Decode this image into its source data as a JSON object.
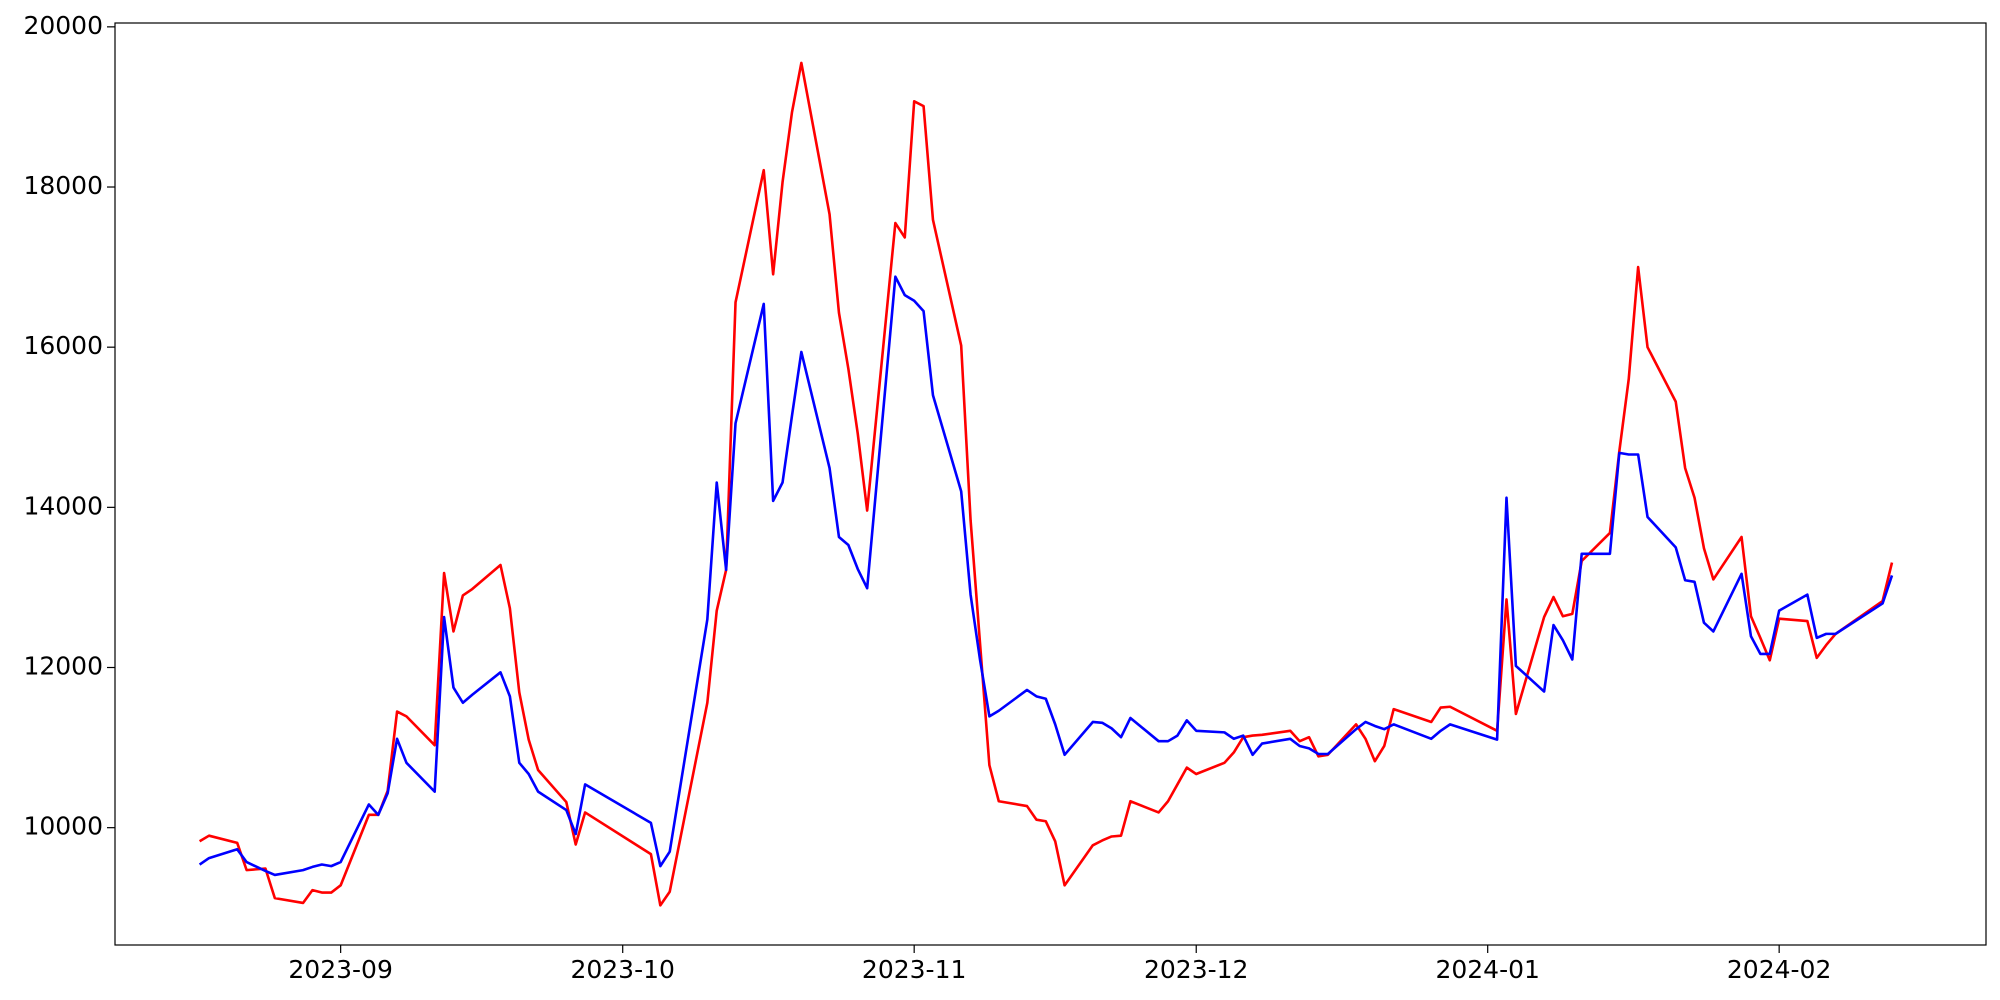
{
  "chart_data": {
    "type": "line",
    "x": [
      19586,
      19587,
      19590,
      19591,
      19593,
      19594,
      19597,
      19598,
      19599,
      19600,
      19601,
      19604,
      19605,
      19606,
      19607,
      19608,
      19611,
      19612,
      19613,
      19614,
      19615,
      19618,
      19619,
      19620,
      19621,
      19622,
      19625,
      19626,
      19627,
      19634,
      19635,
      19636,
      19640,
      19641,
      19642,
      19643,
      19646,
      19647,
      19648,
      19649,
      19650,
      19653,
      19654,
      19655,
      19656,
      19657,
      19660,
      19661,
      19662,
      19663,
      19664,
      19667,
      19668,
      19669,
      19670,
      19671,
      19674,
      19675,
      19676,
      19677,
      19678,
      19681,
      19682,
      19683,
      19684,
      19685,
      19688,
      19689,
      19690,
      19691,
      19692,
      19695,
      19696,
      19697,
      19698,
      19699,
      19702,
      19703,
      19704,
      19705,
      19706,
      19709,
      19710,
      19711,
      19712,
      19713,
      19717,
      19718,
      19719,
      19724,
      19725,
      19726,
      19729,
      19730,
      19731,
      19732,
      19733,
      19736,
      19737,
      19738,
      19739,
      19740,
      19743,
      19744,
      19745,
      19746,
      19747,
      19750,
      19751,
      19752,
      19753,
      19754,
      19757,
      19758,
      19759,
      19760,
      19765,
      19766
    ],
    "series": [
      {
        "color": "red",
        "values": [
          9830,
          9900,
          9810,
          9470,
          9490,
          9120,
          9060,
          9220,
          9190,
          9190,
          9280,
          10160,
          10160,
          10460,
          11450,
          11390,
          11030,
          13180,
          12450,
          12900,
          12980,
          13280,
          12740,
          11690,
          11100,
          10720,
          10320,
          9790,
          10190,
          9670,
          9030,
          9200,
          11560,
          12710,
          13220,
          16560,
          18210,
          16910,
          18060,
          18930,
          19550,
          17660,
          16430,
          15730,
          14920,
          13960,
          17550,
          17370,
          19070,
          19010,
          17590,
          16020,
          13840,
          12310,
          10780,
          10330,
          10270,
          10100,
          10080,
          9830,
          9280,
          9780,
          9840,
          9890,
          9900,
          10330,
          10190,
          10330,
          10540,
          10750,
          10670,
          10810,
          10940,
          11130,
          11150,
          11160,
          11210,
          11080,
          11130,
          10890,
          10910,
          11290,
          11110,
          10830,
          11020,
          11480,
          11320,
          11500,
          11510,
          11210,
          12850,
          11420,
          12630,
          12880,
          12640,
          12670,
          13330,
          13680,
          14700,
          15600,
          17000,
          16000,
          15320,
          14490,
          14120,
          13490,
          13100,
          13630,
          12640,
          12370,
          12090,
          12610,
          12580,
          12120,
          12280,
          12420,
          12830,
          13310
        ]
      },
      {
        "color": "blue",
        "values": [
          9540,
          9620,
          9730,
          9570,
          9460,
          9410,
          9470,
          9510,
          9540,
          9520,
          9570,
          10290,
          10160,
          10430,
          11110,
          10810,
          10450,
          12630,
          11750,
          11560,
          11660,
          11940,
          11640,
          10810,
          10670,
          10450,
          10220,
          9920,
          10540,
          10060,
          9520,
          9700,
          12600,
          14310,
          13220,
          15050,
          16540,
          14080,
          14310,
          15140,
          15940,
          14490,
          13630,
          13530,
          13230,
          12990,
          16880,
          16650,
          16580,
          16450,
          15400,
          14200,
          12910,
          12100,
          11390,
          11460,
          11720,
          11640,
          11610,
          11290,
          10910,
          11320,
          11310,
          11240,
          11130,
          11370,
          11080,
          11080,
          11150,
          11340,
          11210,
          11190,
          11110,
          11150,
          10910,
          11050,
          11110,
          11020,
          10990,
          10920,
          10920,
          11230,
          11320,
          11270,
          11230,
          11290,
          11110,
          11210,
          11290,
          11100,
          14120,
          12020,
          11700,
          12530,
          12340,
          12100,
          13420,
          13420,
          14680,
          14660,
          14660,
          13880,
          13500,
          13090,
          13070,
          12560,
          12450,
          13170,
          12390,
          12170,
          12170,
          12710,
          12910,
          12370,
          12420,
          12420,
          12800,
          13150
        ]
      }
    ],
    "xlim": [
      19577,
      19776
    ],
    "xticks": [
      {
        "value": 19601,
        "label": "2023-09"
      },
      {
        "value": 19631,
        "label": "2023-10"
      },
      {
        "value": 19662,
        "label": "2023-11"
      },
      {
        "value": 19692,
        "label": "2023-12"
      },
      {
        "value": 19723,
        "label": "2024-01"
      },
      {
        "value": 19754,
        "label": "2024-02"
      }
    ],
    "ylim": [
      8535,
      20048
    ],
    "yticks": [
      10000,
      12000,
      14000,
      16000,
      18000,
      20000
    ],
    "grid": false
  }
}
